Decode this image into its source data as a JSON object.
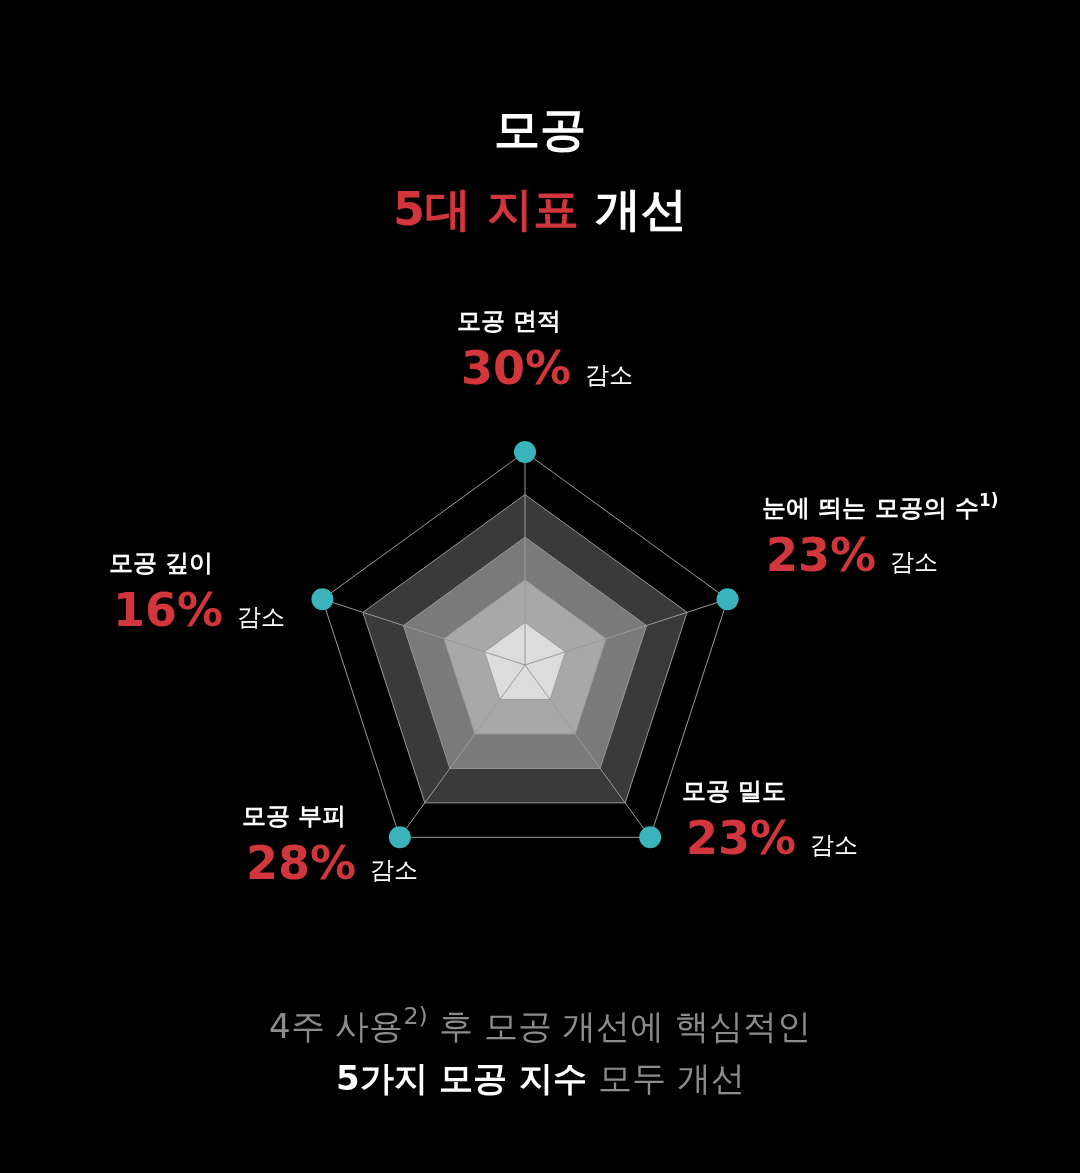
{
  "chart_data": {
    "type": "other",
    "title": "모공",
    "subtitle": "5대 지표 개선",
    "categories": [
      "모공 면적",
      "눈에 띄는 모공의 수$^{1)}$",
      "모공 밀도",
      "모공 부피",
      "모공 깊이"
    ],
    "values": [
      30,
      23,
      23,
      28,
      16
    ],
    "value_labels": [
      "30% 감소",
      "23% 감소",
      "23% 감소",
      "28% 감소",
      "16% 감소"
    ],
    "annotations": [
      "4주 사용$^{2)}$ 후 모공 개선에 핵심적인",
      "5가지 모공 지수 모두 개선"
    ]
  }
}
